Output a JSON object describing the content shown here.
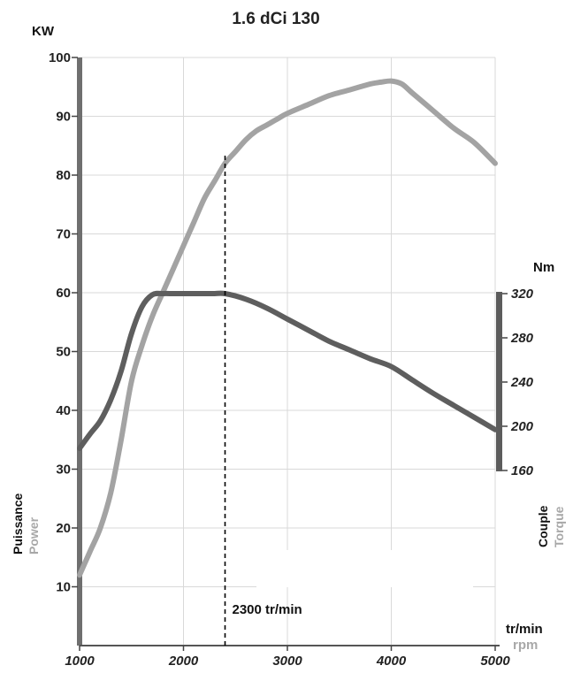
{
  "chart_data": {
    "type": "line",
    "title": "1.6 dCi 130",
    "x_unit_fr": "tr/min",
    "x_unit_en": "rpm",
    "left_axis": {
      "unit": "KW",
      "label_fr": "Puissance",
      "label_en": "Power",
      "ylim": [
        0,
        100
      ],
      "ticks": [
        "10",
        "20",
        "30",
        "40",
        "50",
        "60",
        "70",
        "80",
        "90",
        "100"
      ]
    },
    "right_axis": {
      "unit": "Nm",
      "label_fr": "Couple",
      "label_en": "Torque",
      "ylim": [
        160,
        320
      ],
      "ticks": [
        "160",
        "200",
        "240",
        "280",
        "320"
      ]
    },
    "xlim": [
      1000,
      5000
    ],
    "x_ticks": [
      "1000",
      "2000",
      "3000",
      "4000",
      "5000"
    ],
    "grid": true,
    "series": [
      {
        "color": "#a3a3a3",
        "axis": "left",
        "x": [
          1000,
          1100,
          1200,
          1300,
          1400,
          1500,
          1600,
          1700,
          1800,
          1900,
          2000,
          2100,
          2200,
          2300,
          2400,
          2500,
          2600,
          2700,
          2800,
          2900,
          3000,
          3200,
          3400,
          3600,
          3800,
          3900,
          4000,
          4100,
          4200,
          4400,
          4600,
          4800,
          5000
        ],
        "y": [
          12,
          16,
          20,
          26,
          35,
          45,
          51,
          56,
          60,
          64,
          68,
          72,
          76,
          79,
          82,
          84,
          86,
          87.5,
          88.5,
          89.5,
          90.5,
          92,
          93.5,
          94.5,
          95.5,
          95.8,
          96,
          95.5,
          94,
          91,
          88,
          85.5,
          82
        ]
      },
      {
        "color": "#5e5e5e",
        "axis": "right",
        "x": [
          1000,
          1100,
          1200,
          1300,
          1400,
          1500,
          1600,
          1700,
          1800,
          1900,
          2000,
          2100,
          2200,
          2300,
          2400,
          2600,
          2800,
          3000,
          3200,
          3400,
          3600,
          3800,
          4000,
          4200,
          4400,
          4600,
          4800,
          5000
        ],
        "y": [
          180,
          193,
          205,
          224,
          250,
          284,
          308,
          319,
          320,
          320,
          320,
          320,
          320,
          320,
          320,
          315,
          307,
          297,
          287,
          277,
          269,
          261,
          254,
          242,
          230,
          219,
          208,
          197
        ]
      }
    ],
    "annotations": [
      {
        "x": 2400,
        "text": "2300 tr/min"
      }
    ]
  }
}
